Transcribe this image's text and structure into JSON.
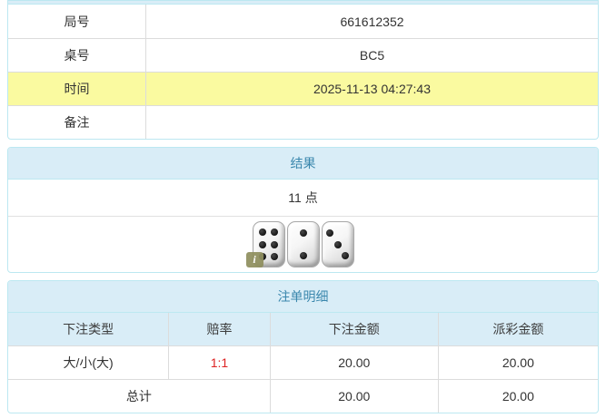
{
  "info_table": {
    "rows": [
      {
        "label": "局号",
        "value": "661612352",
        "highlight": false
      },
      {
        "label": "桌号",
        "value": "BC5",
        "highlight": false
      },
      {
        "label": "时间",
        "value": "2025-11-13 04:27:43",
        "highlight": true
      },
      {
        "label": "备注",
        "value": "",
        "highlight": false
      }
    ]
  },
  "result_panel": {
    "title": "结果",
    "points": "11 点",
    "dice": [
      6,
      2,
      3
    ],
    "info_icon": "i"
  },
  "bets_panel": {
    "title": "注单明细",
    "columns": [
      "下注类型",
      "赔率",
      "下注金额",
      "派彩金额"
    ],
    "rows": [
      {
        "type": "大/小(大)",
        "odds": "1:1",
        "bet": "20.00",
        "payout": "20.00"
      }
    ],
    "total_label": "总计",
    "total_bet": "20.00",
    "total_payout": "20.00"
  },
  "colors": {
    "panel_border": "#bce8f1",
    "header_bg": "#d9edf7",
    "header_text": "#3a87ad",
    "highlight_row": "#fafaa0",
    "cell_border": "#dcdcdc",
    "odds_red": "#dd2222",
    "info_badge_bg": "#8f8f5e"
  }
}
